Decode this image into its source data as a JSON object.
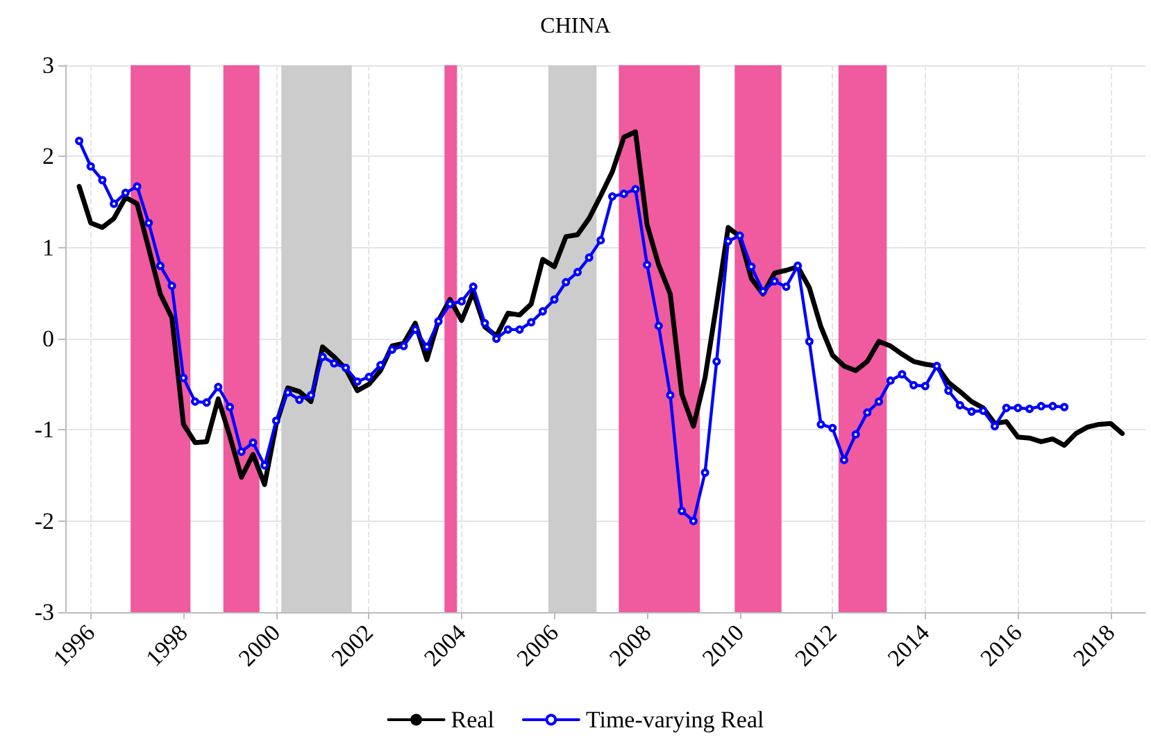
{
  "chart_data": {
    "type": "line",
    "title": "CHINA",
    "xlim": [
      1995.45,
      2018.75
    ],
    "xticks": [
      1996,
      1998,
      2000,
      2002,
      2004,
      2006,
      2008,
      2010,
      2012,
      2014,
      2016,
      2018
    ],
    "ylim": [
      -3,
      3
    ],
    "yticks": [
      -3,
      -2,
      -1,
      0,
      1,
      2,
      3
    ],
    "grid": true,
    "legend": "bottom",
    "bands": [
      {
        "axis": "x",
        "from": 1996.86,
        "to": 1998.15,
        "color": "#f05a9e"
      },
      {
        "axis": "x",
        "from": 1998.86,
        "to": 1999.64,
        "color": "#f05a9e"
      },
      {
        "axis": "x",
        "from": 2000.11,
        "to": 2001.63,
        "color": "#cccccc"
      },
      {
        "axis": "x",
        "from": 2003.63,
        "to": 2003.9,
        "color": "#f05a9e"
      },
      {
        "axis": "x",
        "from": 2005.87,
        "to": 2006.91,
        "color": "#cccccc"
      },
      {
        "axis": "x",
        "from": 2007.39,
        "to": 2009.14,
        "color": "#f05a9e"
      },
      {
        "axis": "x",
        "from": 2009.89,
        "to": 2010.9,
        "color": "#f05a9e"
      },
      {
        "axis": "x",
        "from": 2012.13,
        "to": 2013.17,
        "color": "#f05a9e"
      }
    ],
    "series": [
      {
        "name": "Real",
        "color": "#000000",
        "marker": "none",
        "x": [
          1995.75,
          1996,
          1996.25,
          1996.5,
          1996.75,
          1997,
          1997.25,
          1997.5,
          1997.75,
          1998,
          1998.25,
          1998.5,
          1998.75,
          1999,
          1999.25,
          1999.5,
          1999.75,
          2000,
          2000.25,
          2000.5,
          2000.75,
          2001,
          2001.25,
          2001.5,
          2001.75,
          2002,
          2002.25,
          2002.5,
          2002.75,
          2003,
          2003.25,
          2003.5,
          2003.75,
          2004,
          2004.25,
          2004.5,
          2004.75,
          2005,
          2005.25,
          2005.5,
          2005.75,
          2006,
          2006.25,
          2006.5,
          2006.75,
          2007,
          2007.25,
          2007.5,
          2007.75,
          2008,
          2008.25,
          2008.5,
          2008.75,
          2009,
          2009.25,
          2009.5,
          2009.75,
          2010,
          2010.25,
          2010.5,
          2010.75,
          2011,
          2011.25,
          2011.5,
          2011.75,
          2012,
          2012.25,
          2012.5,
          2012.75,
          2013,
          2013.25,
          2013.5,
          2013.75,
          2014,
          2014.25,
          2014.5,
          2014.75,
          2015,
          2015.25,
          2015.5,
          2015.75,
          2016,
          2016.25,
          2016.5,
          2016.75,
          2017,
          2017.25,
          2017.5,
          2017.75,
          2018,
          2018.25
        ],
        "values": [
          1.67,
          1.27,
          1.22,
          1.32,
          1.55,
          1.48,
          0.99,
          0.49,
          0.23,
          -0.94,
          -1.14,
          -1.13,
          -0.66,
          -1.07,
          -1.52,
          -1.27,
          -1.6,
          -0.94,
          -0.54,
          -0.58,
          -0.69,
          -0.09,
          -0.2,
          -0.33,
          -0.57,
          -0.5,
          -0.35,
          -0.08,
          -0.05,
          0.17,
          -0.23,
          0.2,
          0.43,
          0.2,
          0.51,
          0.13,
          0.03,
          0.28,
          0.26,
          0.38,
          0.87,
          0.79,
          1.12,
          1.14,
          1.32,
          1.57,
          1.83,
          2.21,
          2.27,
          1.25,
          0.81,
          0.49,
          -0.61,
          -0.96,
          -0.43,
          0.38,
          1.22,
          1.12,
          0.66,
          0.49,
          0.72,
          0.75,
          0.79,
          0.56,
          0.13,
          -0.18,
          -0.3,
          -0.35,
          -0.25,
          -0.03,
          -0.08,
          -0.17,
          -0.25,
          -0.28,
          -0.3,
          -0.48,
          -0.58,
          -0.69,
          -0.76,
          -0.93,
          -0.91,
          -1.08,
          -1.09,
          -1.13,
          -1.1,
          -1.17,
          -1.04,
          -0.97,
          -0.94,
          -0.93,
          -1.04
        ]
      },
      {
        "name": "Time-varying Real",
        "color": "#0000ff",
        "marker": "circle",
        "x": [
          1995.75,
          1996,
          1996.25,
          1996.5,
          1996.75,
          1997,
          1997.25,
          1997.5,
          1997.75,
          1998,
          1998.25,
          1998.5,
          1998.75,
          1999,
          1999.25,
          1999.5,
          1999.75,
          2000,
          2000.25,
          2000.5,
          2000.75,
          2001,
          2001.25,
          2001.5,
          2001.75,
          2002,
          2002.25,
          2002.5,
          2002.75,
          2003,
          2003.25,
          2003.5,
          2003.75,
          2004,
          2004.25,
          2004.5,
          2004.75,
          2005,
          2005.25,
          2005.5,
          2005.75,
          2006,
          2006.25,
          2006.5,
          2006.75,
          2007,
          2007.25,
          2007.5,
          2007.75,
          2008,
          2008.25,
          2008.5,
          2008.75,
          2009,
          2009.25,
          2009.5,
          2009.75,
          2010,
          2010.25,
          2010.5,
          2010.75,
          2011,
          2011.25,
          2011.5,
          2011.75,
          2012,
          2012.25,
          2012.5,
          2012.75,
          2013,
          2013.25,
          2013.5,
          2013.75,
          2014,
          2014.25,
          2014.5,
          2014.75,
          2015,
          2015.25,
          2015.5,
          2015.75,
          2016,
          2016.25,
          2016.5,
          2016.75,
          2017
        ],
        "values": [
          2.17,
          1.89,
          1.74,
          1.48,
          1.6,
          1.67,
          1.27,
          0.8,
          0.58,
          -0.43,
          -0.69,
          -0.7,
          -0.53,
          -0.75,
          -1.24,
          -1.14,
          -1.39,
          -0.9,
          -0.59,
          -0.67,
          -0.62,
          -0.2,
          -0.27,
          -0.32,
          -0.47,
          -0.42,
          -0.29,
          -0.12,
          -0.08,
          0.1,
          -0.09,
          0.19,
          0.38,
          0.41,
          0.57,
          0.17,
          0.0,
          0.1,
          0.1,
          0.18,
          0.3,
          0.43,
          0.62,
          0.73,
          0.89,
          1.08,
          1.56,
          1.59,
          1.64,
          0.81,
          0.14,
          -0.62,
          -1.89,
          -2.0,
          -1.47,
          -0.25,
          1.07,
          1.13,
          0.79,
          0.52,
          0.63,
          0.57,
          0.8,
          -0.03,
          -0.94,
          -0.98,
          -1.33,
          -1.05,
          -0.81,
          -0.69,
          -0.46,
          -0.39,
          -0.51,
          -0.52,
          -0.3,
          -0.57,
          -0.73,
          -0.8,
          -0.79,
          -0.96,
          -0.76,
          -0.76,
          -0.77,
          -0.74,
          -0.74,
          -0.75
        ]
      }
    ]
  }
}
